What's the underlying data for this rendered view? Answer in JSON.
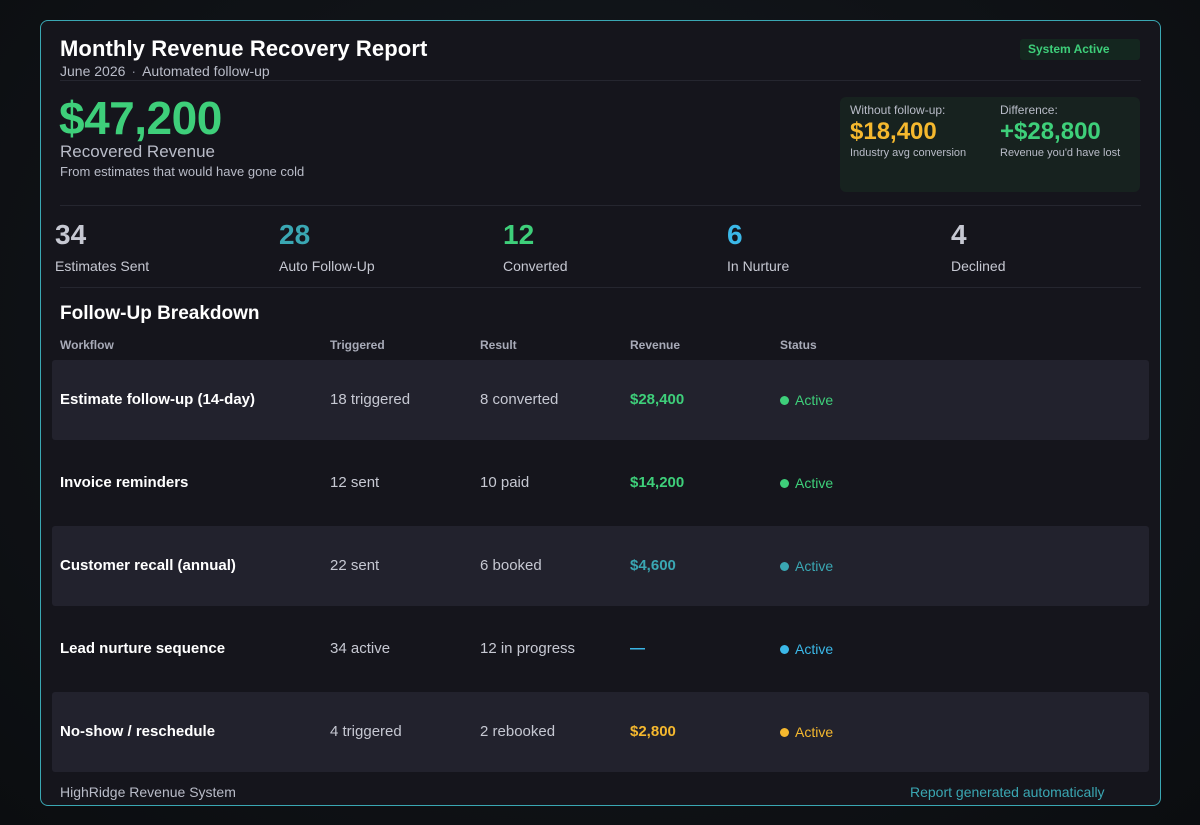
{
  "header": {
    "title": "Monthly Revenue Recovery Report",
    "period": "June 2026",
    "separator": "·",
    "mode": "Automated follow-up",
    "badge": "System Active"
  },
  "hero": {
    "amount": "$47,200",
    "label": "Recovered Revenue",
    "sub": "From estimates that would have gone cold"
  },
  "comparison": {
    "without": {
      "head": "Without follow-up:",
      "value": "$18,400",
      "note": "Industry avg conversion",
      "color": "#f5b82e"
    },
    "difference": {
      "head": "Difference:",
      "value": "+$28,800",
      "note": "Revenue you'd have lost",
      "color": "#3ecf7a"
    }
  },
  "stats": [
    {
      "value": "34",
      "label": "Estimates Sent",
      "color": "#c6c8d2"
    },
    {
      "value": "28",
      "label": "Auto Follow-Up",
      "color": "#3aa7b3"
    },
    {
      "value": "12",
      "label": "Converted",
      "color": "#3ecf7a"
    },
    {
      "value": "6",
      "label": "In Nurture",
      "color": "#3bb8e8"
    },
    {
      "value": "4",
      "label": "Declined",
      "color": "#c6c8d2"
    }
  ],
  "breakdown": {
    "title": "Follow-Up Breakdown",
    "columns": [
      "Workflow",
      "Triggered",
      "Result",
      "Revenue",
      "Status"
    ],
    "rows": [
      {
        "workflow": "Estimate follow-up (14-day)",
        "triggered": "18 triggered",
        "result": "8 converted",
        "revenue": "$28,400",
        "revenue_color": "#3ecf7a",
        "status": "Active",
        "status_color": "#3ecf7a"
      },
      {
        "workflow": "Invoice reminders",
        "triggered": "12 sent",
        "result": "10 paid",
        "revenue": "$14,200",
        "revenue_color": "#3ecf7a",
        "status": "Active",
        "status_color": "#3ecf7a"
      },
      {
        "workflow": "Customer recall (annual)",
        "triggered": "22 sent",
        "result": "6 booked",
        "revenue": "$4,600",
        "revenue_color": "#3aa7b3",
        "status": "Active",
        "status_color": "#3aa7b3"
      },
      {
        "workflow": "Lead nurture sequence",
        "triggered": "34 active",
        "result": "12 in progress",
        "revenue": "—",
        "revenue_color": "#3bb8e8",
        "status": "Active",
        "status_color": "#3bb8e8"
      },
      {
        "workflow": "No-show / reschedule",
        "triggered": "4 triggered",
        "result": "2 rebooked",
        "revenue": "$2,800",
        "revenue_color": "#f5b82e",
        "status": "Active",
        "status_color": "#f5b82e"
      }
    ]
  },
  "footer": {
    "left": "HighRidge Revenue System",
    "right": "Report generated automatically"
  }
}
